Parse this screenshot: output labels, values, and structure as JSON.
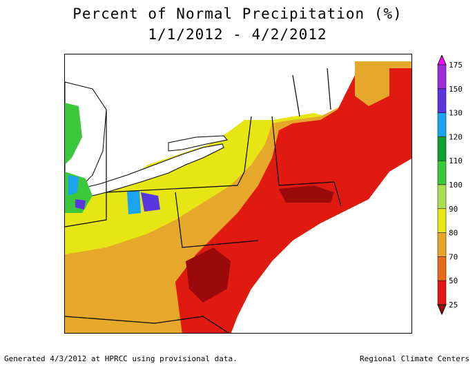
{
  "title_line1": "Percent of Normal Precipitation (%)",
  "title_line2": "1/1/2012 - 4/2/2012",
  "legend": {
    "ticks": [
      "175",
      "150",
      "130",
      "120",
      "110",
      "100",
      "90",
      "80",
      "70",
      "50",
      "25"
    ],
    "bins": [
      {
        "color": "#ff00ff"
      },
      {
        "color": "#9b30d9"
      },
      {
        "color": "#5a36e0"
      },
      {
        "color": "#1aa3f0"
      },
      {
        "color": "#10a030"
      },
      {
        "color": "#3cc83c"
      },
      {
        "color": "#a8de50"
      },
      {
        "color": "#e6e614"
      },
      {
        "color": "#e6a82a"
      },
      {
        "color": "#e86a18"
      },
      {
        "color": "#e01a10"
      },
      {
        "color": "#9a0a0a"
      }
    ]
  },
  "footer_left": "Generated 4/3/2012 at HPRCC using provisional data.",
  "footer_right": "Regional Climate Centers"
}
